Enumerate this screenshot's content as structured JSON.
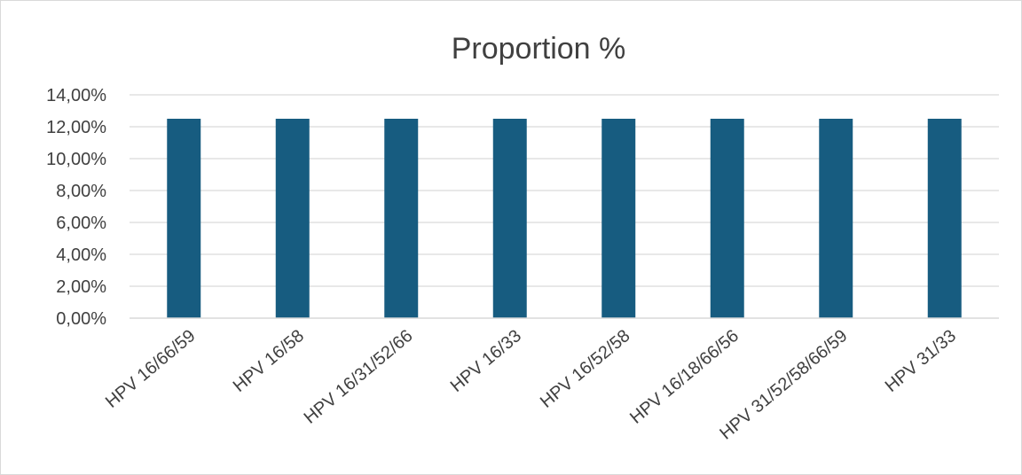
{
  "chart_data": {
    "type": "bar",
    "title": "Proportion %",
    "categories": [
      "HPV 16/66/59",
      "HPV 16/58",
      "HPV 16/31/52/66",
      "HPV 16/33",
      "HPV 16/52/58",
      "HPV 16/18/66/56",
      "HPV 31/52/58/66/59",
      "HPV 31/33"
    ],
    "series": [
      {
        "values": [
          12.5,
          12.5,
          12.5,
          12.5,
          12.5,
          12.5,
          12.5,
          12.5
        ],
        "color": "#175c80"
      }
    ],
    "y_ticks": [
      "0,00%",
      "2,00%",
      "4,00%",
      "6,00%",
      "8,00%",
      "10,00%",
      "12,00%",
      "14,00%"
    ],
    "ylim": [
      0,
      14
    ],
    "xlabel": "",
    "ylabel": "",
    "grid": true,
    "legend": "none"
  }
}
